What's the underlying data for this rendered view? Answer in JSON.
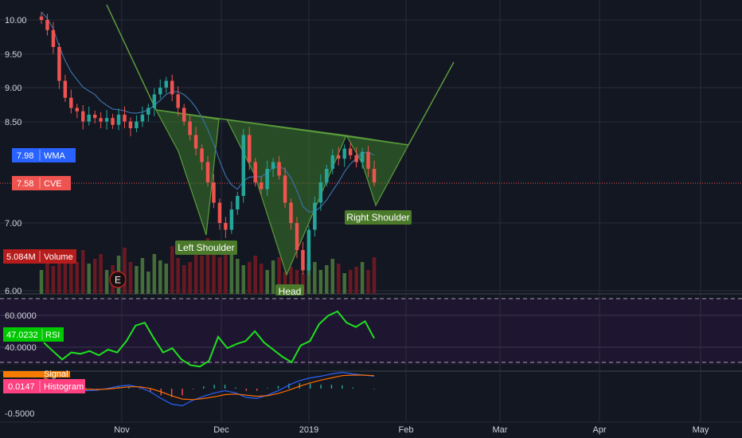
{
  "chart_data": [
    {
      "type": "candlestick",
      "x_axis_ticks": [
        "Nov",
        "Dec",
        "2019",
        "Feb",
        "Mar",
        "Apr",
        "May"
      ],
      "y_ticks": [
        "10.00",
        "9.50",
        "9.00",
        "8.50",
        "7.00",
        "6.00"
      ],
      "ylim": [
        5.95,
        10.05
      ],
      "grid": true,
      "series_tags": [
        {
          "value": "7.98",
          "label": "WMA",
          "color": "#2962ff"
        },
        {
          "value": "7.58",
          "label": "CVE",
          "color": "#ef5350"
        },
        {
          "value": "5.084M",
          "label": "Volume",
          "color": "#b71c1c"
        }
      ],
      "earnings_marker": "E",
      "pattern_labels": [
        "Left Shoulder",
        "Head",
        "Right Shoulder"
      ],
      "ohlc_closes": [
        10.0,
        9.85,
        9.6,
        9.1,
        8.85,
        8.7,
        8.65,
        8.5,
        8.6,
        8.55,
        8.5,
        8.55,
        8.45,
        8.6,
        8.5,
        8.4,
        8.5,
        8.6,
        8.7,
        8.9,
        9.0,
        9.1,
        8.9,
        8.7,
        8.5,
        8.3,
        8.1,
        7.9,
        7.6,
        7.3,
        7.0,
        6.9,
        7.2,
        7.4,
        8.3,
        7.9,
        7.6,
        7.5,
        7.8,
        7.9,
        7.7,
        7.3,
        7.0,
        6.6,
        6.3,
        6.9,
        7.3,
        7.6,
        7.8,
        8.0,
        7.95,
        8.1,
        8.0,
        7.9,
        8.05,
        7.8,
        7.6
      ]
    },
    {
      "type": "line",
      "name": "RSI",
      "current_value": "47.0232",
      "y_ticks": [
        "60.0000",
        "40.0000"
      ],
      "ylim": [
        20,
        85
      ],
      "bands": [
        70,
        30
      ],
      "values": [
        44,
        38,
        32,
        37,
        36,
        38,
        35,
        39,
        37,
        45,
        56,
        58,
        47,
        37,
        40,
        32,
        28,
        27,
        31,
        48,
        40,
        43,
        45,
        52,
        44,
        39,
        34,
        30,
        42,
        45,
        57,
        63,
        66,
        58,
        55,
        59,
        47
      ]
    },
    {
      "type": "line",
      "name": "MACD",
      "labels": [
        "Signal",
        "Histogram"
      ],
      "current_value": "0.0147",
      "y_ticks": [
        "-0.5000"
      ],
      "ylim": [
        -0.55,
        0.3
      ],
      "macd": [
        0.08,
        -0.05,
        -0.12,
        -0.15,
        -0.18,
        -0.17,
        -0.14,
        -0.1,
        -0.08,
        -0.12,
        -0.2,
        -0.32,
        -0.42,
        -0.45,
        -0.35,
        -0.28,
        -0.22,
        -0.18,
        -0.22,
        -0.3,
        -0.32,
        -0.26,
        -0.18,
        -0.08,
        0.0,
        0.05,
        0.08,
        0.12,
        0.15,
        0.12,
        0.1,
        0.08
      ],
      "signal": [
        0.05,
        -0.02,
        -0.08,
        -0.12,
        -0.15,
        -0.16,
        -0.15,
        -0.13,
        -0.11,
        -0.11,
        -0.14,
        -0.2,
        -0.27,
        -0.33,
        -0.34,
        -0.32,
        -0.29,
        -0.25,
        -0.24,
        -0.26,
        -0.28,
        -0.27,
        -0.23,
        -0.17,
        -0.1,
        -0.04,
        0.01,
        0.05,
        0.09,
        0.1,
        0.1,
        0.09
      ]
    }
  ]
}
